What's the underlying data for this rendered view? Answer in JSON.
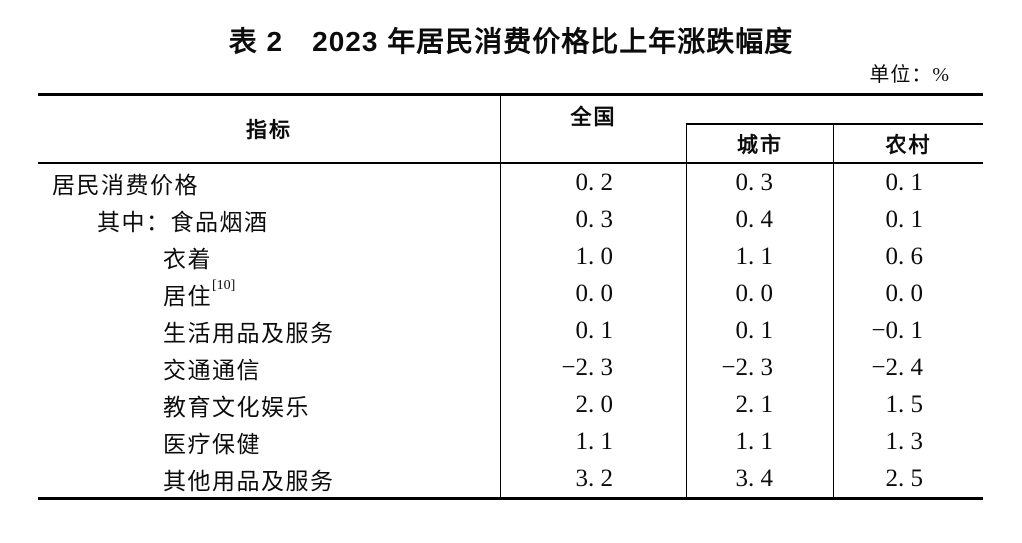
{
  "title": "表 2　2023 年居民消费价格比上年涨跌幅度",
  "unit_label": "单位：%",
  "table": {
    "columns": {
      "indicator": "指标",
      "national": "全国",
      "urban": "城市",
      "rural": "农村"
    },
    "rows": [
      {
        "label": "居民消费价格",
        "sup": "",
        "indent": 0,
        "national": "0.2",
        "urban": "0.3",
        "rural": "0.1"
      },
      {
        "label": "其中：食品烟酒",
        "sup": "",
        "indent": 1,
        "national": "0.3",
        "urban": "0.4",
        "rural": "0.1"
      },
      {
        "label": "衣着",
        "sup": "",
        "indent": 2,
        "national": "1.0",
        "urban": "1.1",
        "rural": "0.6"
      },
      {
        "label": "居住",
        "sup": "[10]",
        "indent": 2,
        "national": "0.0",
        "urban": "0.0",
        "rural": "0.0"
      },
      {
        "label": "生活用品及服务",
        "sup": "",
        "indent": 2,
        "national": "0.1",
        "urban": "0.1",
        "rural": "-0.1"
      },
      {
        "label": "交通通信",
        "sup": "",
        "indent": 2,
        "national": "-2.3",
        "urban": "-2.3",
        "rural": "-2.4"
      },
      {
        "label": "教育文化娱乐",
        "sup": "",
        "indent": 2,
        "national": "2.0",
        "urban": "2.1",
        "rural": "1.5"
      },
      {
        "label": "医疗保健",
        "sup": "",
        "indent": 2,
        "national": "1.1",
        "urban": "1.1",
        "rural": "1.3"
      },
      {
        "label": "其他用品及服务",
        "sup": "",
        "indent": 2,
        "national": "3.2",
        "urban": "3.4",
        "rural": "2.5"
      }
    ]
  },
  "colors": {
    "text": "#0c0c0c",
    "line": "#000000",
    "background": "#ffffff"
  }
}
